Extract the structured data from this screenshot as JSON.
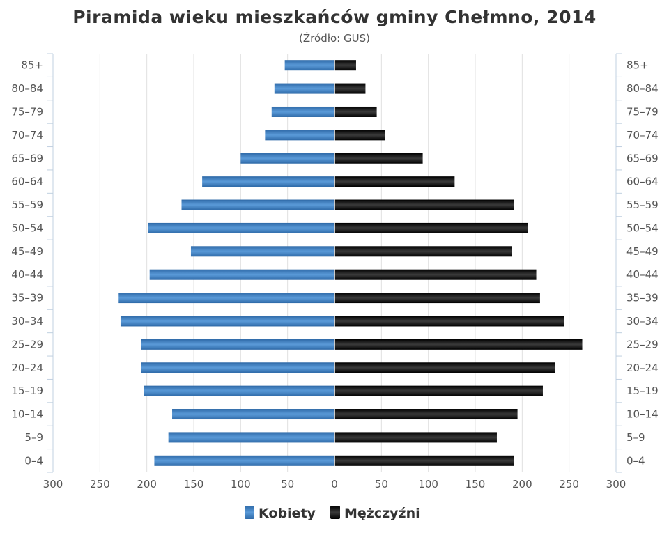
{
  "chart_data": {
    "type": "bar",
    "orientation": "horizontal-population-pyramid",
    "title": "Piramida wieku mieszkańców gminy Chełmno, 2014",
    "subtitle": "(Źródło: GUS)",
    "categories": [
      "85+",
      "80–84",
      "75–79",
      "70–74",
      "65–69",
      "60–64",
      "55–59",
      "50–54",
      "45–49",
      "40–44",
      "35–39",
      "30–34",
      "25–29",
      "20–24",
      "15–19",
      "10–14",
      "5–9",
      "0–4"
    ],
    "series": [
      {
        "name": "Kobiety",
        "color": "#3d7ebf",
        "values": [
          53,
          64,
          67,
          74,
          100,
          141,
          163,
          199,
          153,
          197,
          230,
          228,
          206,
          206,
          203,
          173,
          177,
          192
        ]
      },
      {
        "name": "Mężczyźni",
        "color": "#111111",
        "values": [
          23,
          33,
          45,
          54,
          94,
          128,
          191,
          206,
          189,
          215,
          219,
          245,
          264,
          235,
          222,
          195,
          173,
          191
        ]
      }
    ],
    "x_ticks": [
      "300",
      "250",
      "200",
      "150",
      "100",
      "50",
      "0",
      "50",
      "100",
      "150",
      "200",
      "250",
      "300"
    ],
    "xlim": [
      -300,
      300
    ],
    "grid": true,
    "legend_position": "bottom-center"
  }
}
